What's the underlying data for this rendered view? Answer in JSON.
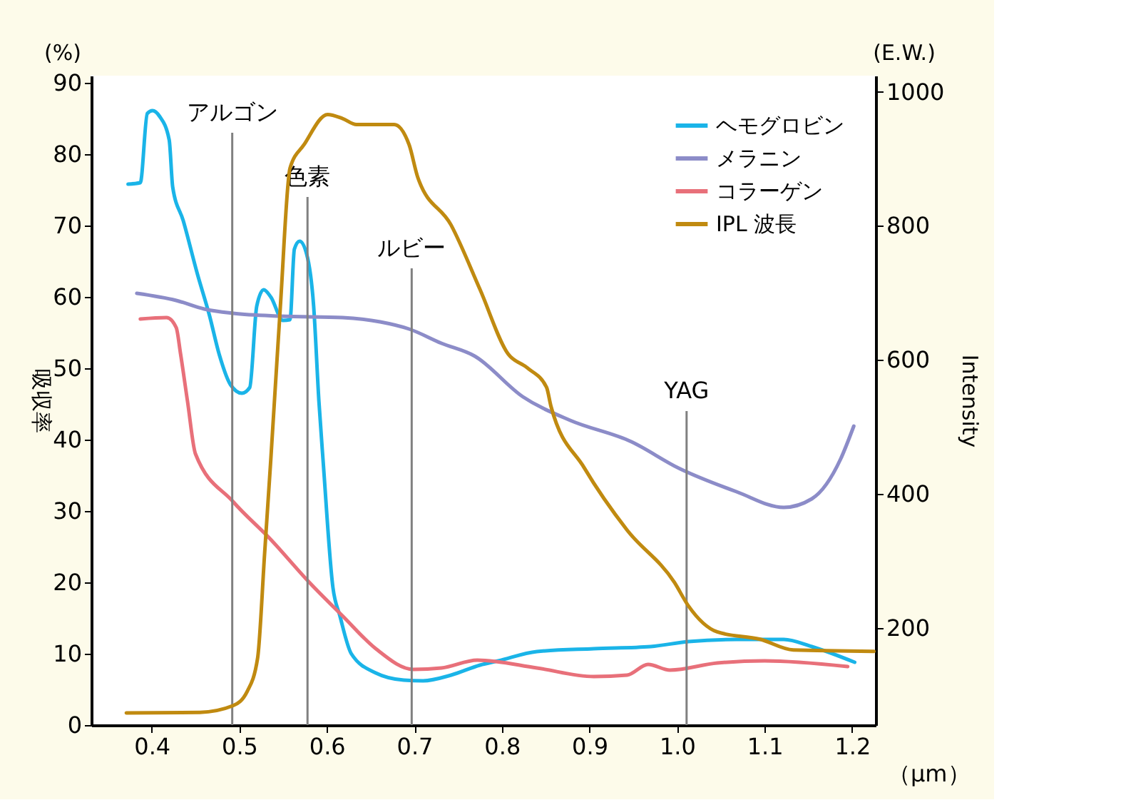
{
  "chart_data": {
    "type": "line",
    "xlabel": "（μm）",
    "ylabel": "吸収率",
    "y2label": "Intensity",
    "xlim": [
      0.331,
      1.227
    ],
    "ylim": [
      0,
      91
    ],
    "y2lim": [
      55,
      1024
    ],
    "xticks": [
      0.4,
      0.5,
      0.6,
      0.7,
      0.8,
      0.9,
      {
        "value": 1,
        "label": "1.0"
      },
      1.1,
      1.2
    ],
    "yticks": [
      0,
      10,
      20,
      30,
      40,
      50,
      60,
      70,
      80,
      90
    ],
    "y2ticks": [
      200,
      400,
      600,
      800,
      1000
    ],
    "grid": false,
    "legend": "top right",
    "line_style": "solid",
    "marker": "none",
    "series": [
      {
        "name": "ヘモグロビン",
        "color": "#1ab4e8",
        "x": [
          0.373,
          0.387,
          0.395,
          0.401,
          0.409,
          0.42,
          0.424,
          0.436,
          0.452,
          0.466,
          0.477,
          0.49,
          0.503,
          0.512,
          0.52,
          0.528,
          0.536,
          0.55,
          0.558,
          0.563,
          0.569,
          0.577,
          0.585,
          0.591,
          0.596,
          0.607,
          0.615,
          0.628,
          0.656,
          0.688,
          0.71,
          0.742,
          0.775,
          0.796,
          0.84,
          0.905,
          0.97,
          1.013,
          1.068,
          1.122,
          1.154,
          1.203
        ],
        "values": [
          75.8,
          76,
          85.7,
          86.1,
          85.3,
          82,
          75.4,
          70.7,
          63.3,
          57.4,
          52,
          47.7,
          46.5,
          47.3,
          58.7,
          61,
          60,
          56.7,
          56.8,
          66.7,
          67.8,
          66,
          58.7,
          45.4,
          36.7,
          19.3,
          15.3,
          10,
          7.3,
          6.3,
          6.2,
          7,
          8.4,
          9,
          10.3,
          10.7,
          11,
          11.7,
          12,
          12,
          11,
          8.8
        ]
      },
      {
        "name": "メラニン",
        "color": "#8c8cc8",
        "x": [
          0.383,
          0.428,
          0.46,
          0.493,
          0.547,
          0.618,
          0.661,
          0.694,
          0.731,
          0.769,
          0.824,
          0.878,
          0.948,
          1.002,
          1.068,
          1.122,
          1.154,
          1.187,
          1.202
        ],
        "values": [
          60.5,
          59.5,
          58.3,
          57.7,
          57.3,
          57.1,
          56.5,
          55.5,
          53.5,
          51.7,
          46,
          42.7,
          39.7,
          36,
          32.7,
          30.5,
          31.7,
          37.3,
          41.9
        ]
      },
      {
        "name": "コラーゲン",
        "color": "#e8707a",
        "x": [
          0.387,
          0.417,
          0.428,
          0.433,
          0.441,
          0.45,
          0.493,
          0.536,
          0.58,
          0.618,
          0.656,
          0.699,
          0.731,
          0.772,
          0.84,
          0.905,
          0.943,
          0.967,
          0.992,
          1.046,
          1.1,
          1.195
        ],
        "values": [
          56.9,
          57.1,
          55.7,
          52,
          45.3,
          38,
          31.3,
          26,
          20,
          15.3,
          10.7,
          7.8,
          8,
          9.1,
          8,
          6.8,
          7,
          8.5,
          7.7,
          8.7,
          9,
          8.2
        ]
      },
      {
        "name": "IPL 波長",
        "color": "#c08a10",
        "axis": "y2",
        "x": [
          0.371,
          0.455,
          0.493,
          0.509,
          0.521,
          0.529,
          0.536,
          0.547,
          0.558,
          0.574,
          0.601,
          0.618,
          0.634,
          0.677,
          0.694,
          0.704,
          0.742,
          0.775,
          0.807,
          0.829,
          0.851,
          0.856,
          0.894,
          0.943,
          0.997,
          1.013,
          1.046,
          1.095,
          1.133,
          1.225
        ],
        "values": [
          73,
          74,
          84,
          105,
          155,
          311,
          450,
          680,
          886,
          921,
          966,
          960,
          951,
          951,
          921,
          872,
          801,
          705,
          609,
          588,
          559,
          531,
          439,
          346,
          268,
          233,
          194,
          183,
          167,
          165
        ]
      }
    ],
    "ref_lines": [
      {
        "axis": "x",
        "value": 0.492,
        "color": "#808080"
      },
      {
        "axis": "x",
        "value": 0.578,
        "color": "#808080"
      },
      {
        "axis": "x",
        "value": 0.697,
        "color": "#808080"
      },
      {
        "axis": "x",
        "value": 1.011,
        "color": "#808080"
      }
    ],
    "annotations": [
      "(%)",
      "(E.W.)",
      {
        "text": "アルゴン",
        "x": 0.492,
        "y": 83
      },
      {
        "text": "色素",
        "x": 0.578,
        "y": 74
      },
      {
        "text": "ルビー",
        "x": 0.697,
        "y": 64
      },
      {
        "text": "YAG",
        "x": 1.011,
        "y": 44
      }
    ]
  }
}
